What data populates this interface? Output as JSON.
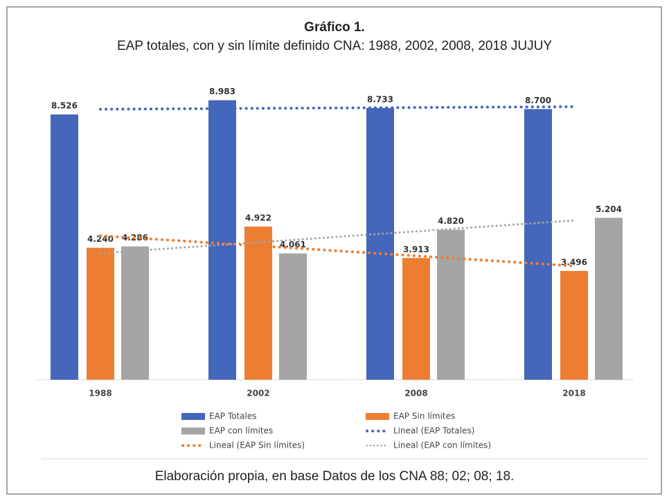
{
  "chart_data": {
    "type": "bar",
    "title": "Gráfico 1.",
    "subtitle": "EAP totales, con y sin límite definido CNA: 1988, 2002, 2008, 2018 JUJUY",
    "footer": "Elaboración propia, en base Datos de los CNA 88; 02; 08; 18.",
    "categories": [
      "1988",
      "2002",
      "2008",
      "2018"
    ],
    "ylim": [
      0,
      10000
    ],
    "series": [
      {
        "name": "EAP Totales",
        "color": "#4466bb",
        "trendline": "Lineal (EAP Totales)",
        "values": [
          8526,
          8983,
          8733,
          8700
        ],
        "value_labels": [
          "8.526",
          "8.983",
          "8.733",
          "8.700"
        ]
      },
      {
        "name": "EAP Sin límites",
        "color": "#ed7d31",
        "trendline": "Lineal (EAP Sin límites)",
        "values": [
          4240,
          4922,
          3913,
          3496
        ],
        "value_labels": [
          "4.240",
          "4.922",
          "3.913",
          "3.496"
        ]
      },
      {
        "name": "EAP con límites",
        "color": "#a5a5a5",
        "trendline": "Lineal (EAP con límites)",
        "values": [
          4286,
          4061,
          4820,
          5204
        ],
        "value_labels": [
          "4.286",
          "4.061",
          "4.820",
          "5.204"
        ]
      }
    ]
  }
}
